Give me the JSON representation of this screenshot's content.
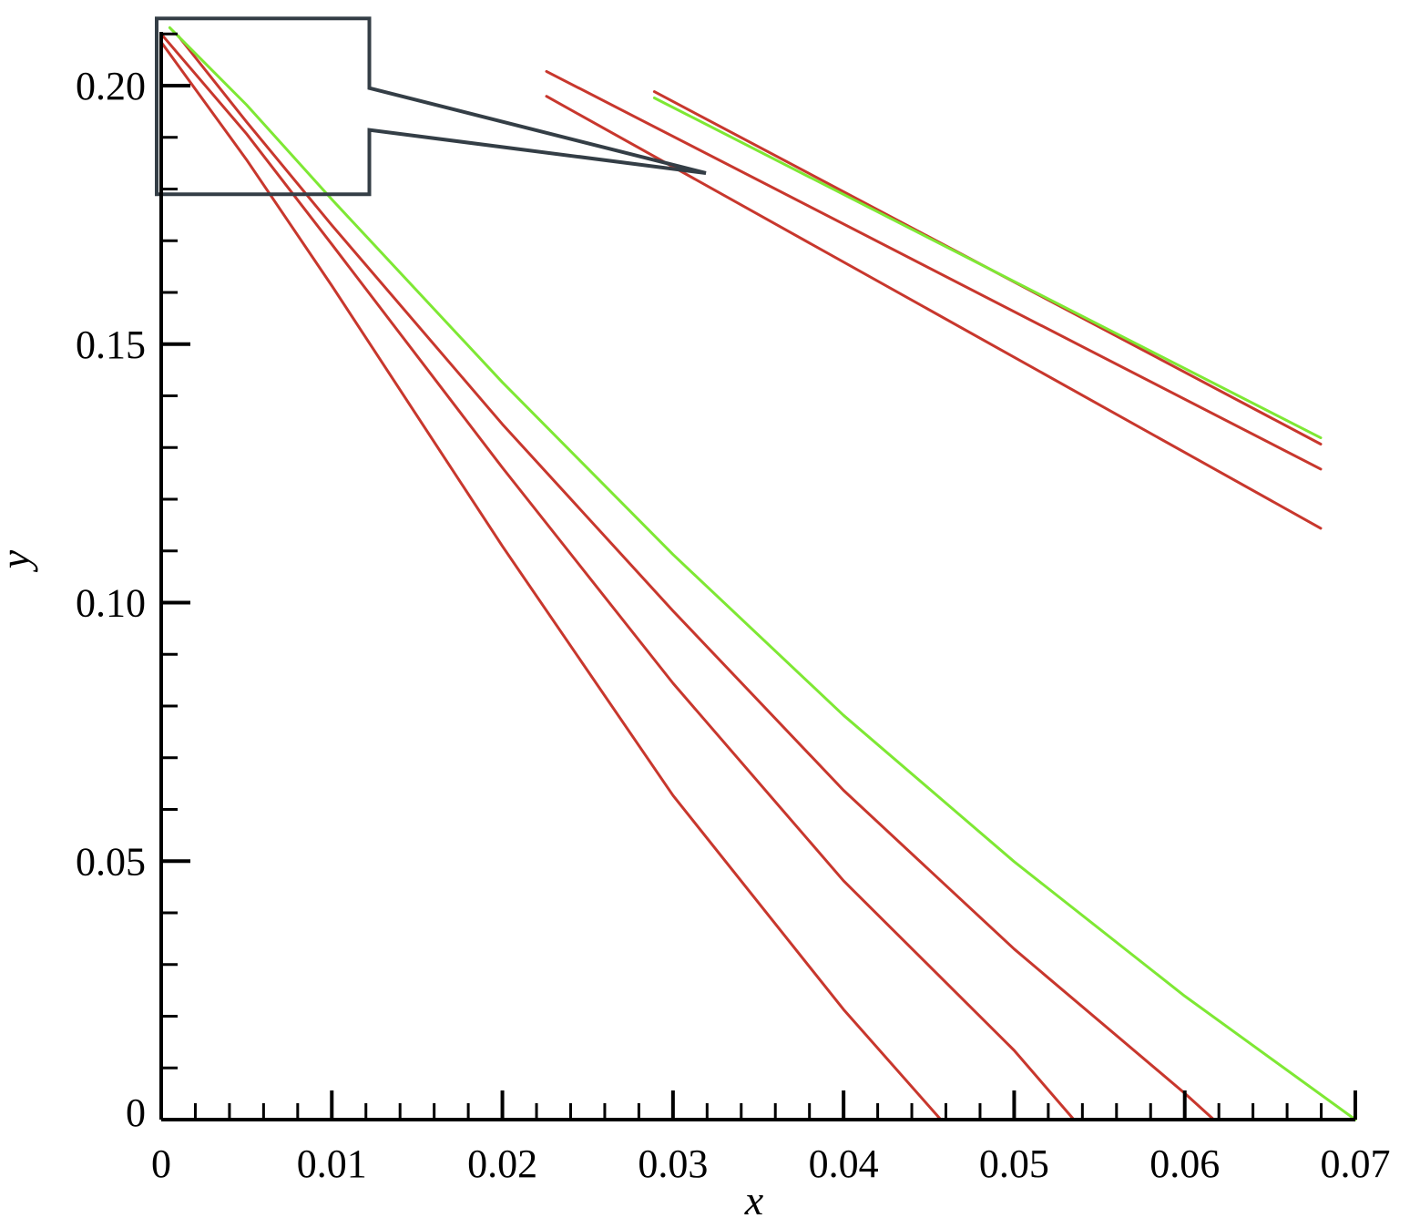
{
  "chart_data": {
    "type": "line",
    "title": "",
    "xlabel": "x",
    "ylabel": "y",
    "xlim": [
      0,
      0.07
    ],
    "ylim": [
      0,
      0.21
    ],
    "grid": false,
    "legend": "none",
    "x_ticks": [
      "0",
      "0.01",
      "0.02",
      "0.03",
      "0.04",
      "0.05",
      "0.06",
      "0.07"
    ],
    "x_tick_values": [
      0,
      0.01,
      0.02,
      0.03,
      0.04,
      0.05,
      0.06,
      0.07
    ],
    "y_ticks": [
      "0",
      "0.05",
      "0.10",
      "0.15",
      "0.20"
    ],
    "y_tick_values": [
      0,
      0.05,
      0.1,
      0.15,
      0.2
    ],
    "colors": {
      "red": "#c8372d",
      "green": "#7ee834",
      "callout": "#343e46"
    },
    "series": [
      {
        "color": "#c8372d",
        "x": [
          0,
          0.005,
          0.01,
          0.02,
          0.03,
          0.04,
          0.0457
        ],
        "y": [
          0.2084,
          0.1857,
          0.1613,
          0.1109,
          0.0627,
          0.0213,
          0
        ]
      },
      {
        "color": "#c8372d",
        "x": [
          0,
          0.005,
          0.01,
          0.02,
          0.03,
          0.04,
          0.05,
          0.0535
        ],
        "y": [
          0.21,
          0.1907,
          0.1693,
          0.1261,
          0.0844,
          0.0462,
          0.0134,
          0
        ]
      },
      {
        "color": "#c8372d",
        "x": [
          0.001,
          0.005,
          0.01,
          0.02,
          0.03,
          0.04,
          0.05,
          0.06,
          0.0617
        ],
        "y": [
          0.2096,
          0.193,
          0.173,
          0.1345,
          0.0984,
          0.0637,
          0.033,
          0.0051,
          0
        ]
      },
      {
        "color": "#7ee834",
        "x": [
          0.0005,
          0.005,
          0.01,
          0.02,
          0.03,
          0.04,
          0.05,
          0.06,
          0.07
        ],
        "y": [
          0.2112,
          0.1963,
          0.178,
          0.1426,
          0.1093,
          0.0782,
          0.0499,
          0.0239,
          0
        ]
      }
    ],
    "inset": {
      "source_xlim": [
        0,
        0.0122
      ],
      "source_ylim": [
        0.179,
        0.213
      ],
      "series": [
        {
          "color": "#c8372d",
          "x": [
            0,
            0.0122
          ],
          "y": [
            0.2084,
            0.1807
          ]
        },
        {
          "color": "#c8372d",
          "x": [
            0,
            0.0122
          ],
          "y": [
            0.21,
            0.1845
          ]
        },
        {
          "color": "#c8372d",
          "x": [
            0.0017,
            0.0122
          ],
          "y": [
            0.2087,
            0.1861
          ]
        },
        {
          "color": "#7ee834",
          "x": [
            0.0017,
            0.0122
          ],
          "y": [
            0.2083,
            0.1865
          ]
        }
      ]
    }
  }
}
